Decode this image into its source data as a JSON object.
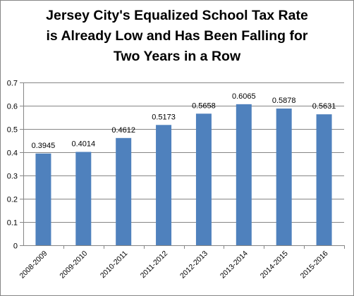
{
  "title_lines": [
    "Jersey City's Equalized School Tax Rate",
    "is Already Low and Has Been Falling for",
    "Two Years in a Row"
  ],
  "colors": {
    "bar": "#4f81bd",
    "grid": "#868686",
    "text": "#000000"
  },
  "chart_data": {
    "type": "bar",
    "title": "Jersey City's Equalized School Tax Rate is Already Low and Has Been Falling for Two Years in a Row",
    "categories": [
      "2008-2009",
      "2009-2010",
      "2010-2011",
      "2011-2012",
      "2012-2013",
      "2013-2014",
      "2014-2015",
      "2015-2016"
    ],
    "values": [
      0.3945,
      0.4014,
      0.4612,
      0.5173,
      0.5658,
      0.6065,
      0.5878,
      0.5631
    ],
    "value_labels": [
      "0.3945",
      "0.4014",
      "0.4612",
      "0.5173",
      "0.5658",
      "0.6065",
      "0.5878",
      "0.5631"
    ],
    "ylim": [
      0,
      0.7
    ],
    "yticks": [
      "0",
      "0.1",
      "0.2",
      "0.3",
      "0.4",
      "0.5",
      "0.6",
      "0.7"
    ],
    "grid": true,
    "legend": "none",
    "xlabel": "",
    "ylabel": ""
  }
}
